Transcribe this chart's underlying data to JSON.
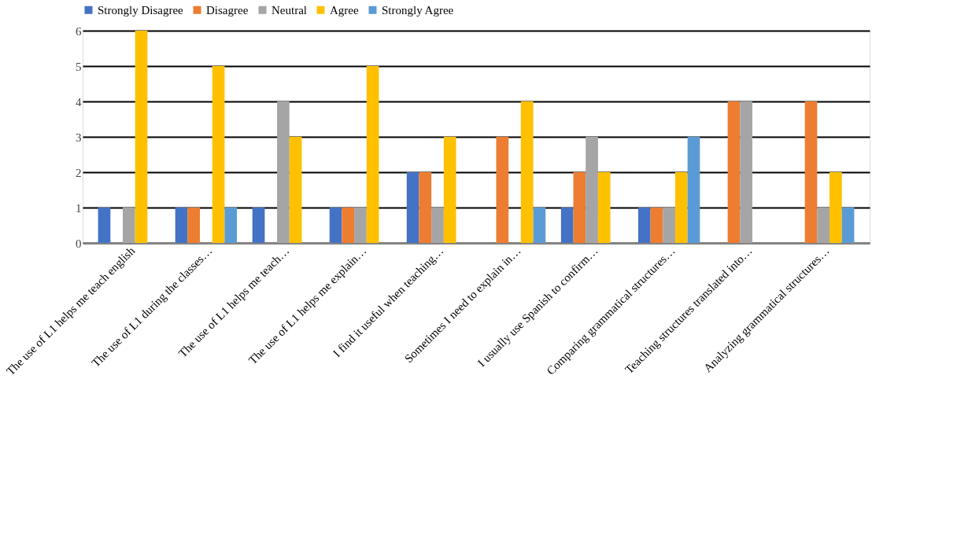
{
  "chart_data": {
    "type": "bar",
    "categories": [
      "The use of L1 helps me teach english",
      "The use of L1 during the classes…",
      "The use of L1 helps me teach…",
      "The use of L1 helps me explain…",
      "I find it useful when teaching…",
      "Sometimes I need to explain in…",
      "I usually use Spanish to confirm…",
      "Comparing grammatical structures…",
      "Teaching structures translated into…",
      "Analyzing grammatical structures…"
    ],
    "series": [
      {
        "name": "Strongly Disagree",
        "color": "#4472c4",
        "values": [
          1,
          1,
          1,
          1,
          2,
          0,
          1,
          1,
          0,
          0
        ]
      },
      {
        "name": "Disagree",
        "color": "#ed7d31",
        "values": [
          0,
          1,
          0,
          1,
          2,
          3,
          2,
          1,
          4,
          4
        ]
      },
      {
        "name": "Neutral",
        "color": "#a5a5a5",
        "values": [
          1,
          0,
          4,
          1,
          1,
          0,
          3,
          1,
          4,
          1
        ]
      },
      {
        "name": "Agree",
        "color": "#ffc000",
        "values": [
          6,
          5,
          3,
          5,
          3,
          4,
          2,
          2,
          0,
          2
        ]
      },
      {
        "name": "Strongly Agree",
        "color": "#5b9bd5",
        "values": [
          0,
          1,
          0,
          0,
          0,
          1,
          0,
          3,
          0,
          1
        ]
      }
    ],
    "ylim": [
      0,
      6
    ],
    "yticks": [
      0,
      1,
      2,
      3,
      4,
      5,
      6
    ],
    "grid": "y",
    "legend": "top"
  }
}
